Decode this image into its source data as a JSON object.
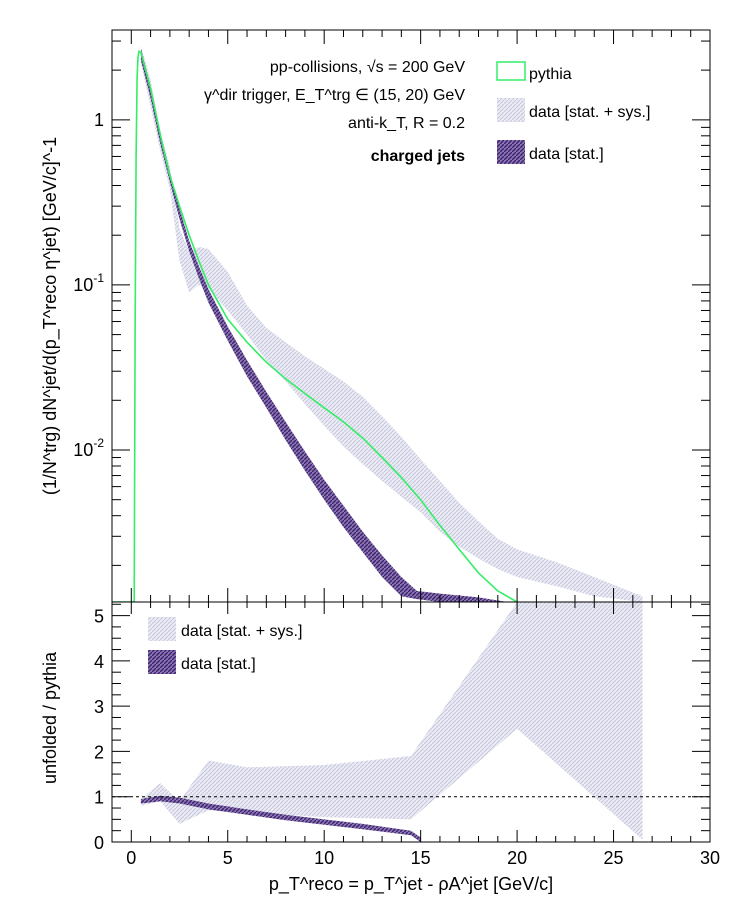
{
  "colors": {
    "pythia": "#33ee66",
    "stat_sys_band": "#dcdcec",
    "stat_band": "#6a4b9a",
    "axis": "#000000",
    "reference_line": "#000000"
  },
  "chart_data": [
    {
      "type": "line",
      "panel": "top",
      "x_scale": "linear",
      "y_scale": "log",
      "xlim": [
        -1,
        30
      ],
      "ylim": [
        0.0012,
        3.5
      ],
      "x_ticks": [
        0,
        5,
        10,
        15,
        20,
        25,
        30
      ],
      "y_ticks": [
        {
          "value": 1,
          "label": "1"
        },
        {
          "value": 0.1,
          "label": "10^-1"
        },
        {
          "value": 0.01,
          "label": "10^-2"
        }
      ],
      "ylabel": "(1/N^trg) dN^jet/d(p_T^reco η^jet) [GeV/c]^-1",
      "annotations": [
        "pp-collisions, √s = 200 GeV",
        "γ^dir trigger, E_T^trg ∈ (15, 20) GeV",
        "anti-k_T, R = 0.2",
        "charged jets"
      ],
      "legend": {
        "placement": "top-right",
        "entries": [
          "pythia",
          "data [stat. + sys.]",
          "data [stat.]"
        ]
      },
      "series": [
        {
          "name": "pythia",
          "style": "line",
          "x": [
            -1,
            0.15,
            0.2,
            0.25,
            0.3,
            0.35,
            0.4,
            0.5,
            0.6,
            0.8,
            1.0,
            1.3,
            1.6,
            2.0,
            2.5,
            3.0,
            3.5,
            4.0,
            5.0,
            6.0,
            7.0,
            8.0,
            9.0,
            10.0,
            11.0,
            12.0,
            13.0,
            14.0,
            15.0,
            16.0,
            17.0,
            18.0,
            19.0,
            20.0
          ],
          "y": [
            0.0012,
            0.0012,
            0.05,
            0.6,
            1.8,
            2.4,
            2.6,
            2.55,
            2.3,
            1.9,
            1.55,
            1.05,
            0.72,
            0.46,
            0.3,
            0.2,
            0.14,
            0.1,
            0.062,
            0.045,
            0.034,
            0.027,
            0.022,
            0.018,
            0.0148,
            0.0118,
            0.009,
            0.0068,
            0.005,
            0.0035,
            0.0025,
            0.0018,
            0.0014,
            0.0012
          ]
        },
        {
          "name": "data [stat. + sys.]",
          "style": "band",
          "x": [
            0.5,
            1.0,
            1.5,
            2.0,
            2.5,
            3.0,
            3.5,
            4.0,
            5.0,
            6.0,
            7.0,
            8.0,
            9.0,
            10.0,
            11.0,
            12.0,
            13.0,
            14.0,
            15.0,
            16.0,
            17.0,
            18.0,
            19.0,
            20.0,
            22.0,
            24.0,
            26.5
          ],
          "low": [
            2.2,
            1.2,
            0.65,
            0.38,
            0.14,
            0.09,
            0.1,
            0.095,
            0.07,
            0.05,
            0.035,
            0.026,
            0.019,
            0.014,
            0.0105,
            0.0082,
            0.0065,
            0.0052,
            0.0042,
            0.0032,
            0.0026,
            0.0022,
            0.0019,
            0.0017,
            0.0015,
            0.0013,
            0.0012
          ],
          "high": [
            2.8,
            1.75,
            0.85,
            0.52,
            0.22,
            0.16,
            0.17,
            0.165,
            0.12,
            0.075,
            0.055,
            0.045,
            0.037,
            0.031,
            0.026,
            0.021,
            0.016,
            0.012,
            0.0088,
            0.0065,
            0.0048,
            0.0037,
            0.0029,
            0.0025,
            0.0021,
            0.0017,
            0.0013
          ]
        },
        {
          "name": "data [stat.]",
          "style": "band",
          "x": [
            0.5,
            1.0,
            1.5,
            2.0,
            2.5,
            3.0,
            3.5,
            4.0,
            5.0,
            6.0,
            7.0,
            8.0,
            9.0,
            10.0,
            11.0,
            12.0,
            13.0,
            14.0,
            14.8,
            16.0,
            18.0,
            19.5
          ],
          "low": [
            2.3,
            1.35,
            0.72,
            0.42,
            0.25,
            0.16,
            0.11,
            0.078,
            0.046,
            0.028,
            0.018,
            0.0115,
            0.0075,
            0.005,
            0.0034,
            0.0024,
            0.0017,
            0.0013,
            0.00125,
            0.0012,
            0.0012,
            0.0012
          ],
          "high": [
            2.7,
            1.6,
            0.85,
            0.48,
            0.29,
            0.185,
            0.13,
            0.094,
            0.056,
            0.035,
            0.0225,
            0.0148,
            0.0098,
            0.0066,
            0.0046,
            0.0032,
            0.0023,
            0.0017,
            0.0014,
            0.00135,
            0.00128,
            0.0012
          ]
        }
      ]
    },
    {
      "type": "area",
      "panel": "bottom",
      "x_scale": "linear",
      "y_scale": "linear",
      "xlim": [
        -1,
        30
      ],
      "ylim": [
        0,
        5.3
      ],
      "x_ticks": [
        0,
        5,
        10,
        15,
        20,
        25,
        30
      ],
      "y_ticks": [
        0,
        1,
        2,
        3,
        4,
        5
      ],
      "xlabel": "p_T^reco = p_T^jet - ρA^jet [GeV/c]",
      "ylabel": "unfolded / pythia",
      "reference_line": 1,
      "legend": {
        "placement": "top-left",
        "entries": [
          "data [stat. + sys.]",
          "data [stat.]"
        ]
      },
      "series": [
        {
          "name": "data [stat. + sys.]",
          "style": "band",
          "x": [
            0.5,
            1.5,
            2.5,
            4.0,
            6.0,
            10.0,
            14.5,
            20.0,
            26.5
          ],
          "low": [
            0.8,
            0.9,
            0.4,
            0.7,
            0.65,
            0.55,
            0.5,
            2.5,
            0.05
          ],
          "high": [
            0.95,
            1.3,
            0.9,
            1.8,
            1.65,
            1.7,
            1.9,
            5.3,
            5.3
          ]
        },
        {
          "name": "data [stat.]",
          "style": "band",
          "x": [
            0.5,
            1.5,
            2.5,
            4.0,
            6.0,
            8.0,
            10.0,
            12.0,
            14.5,
            15.0
          ],
          "low": [
            0.85,
            0.9,
            0.85,
            0.72,
            0.6,
            0.48,
            0.38,
            0.28,
            0.15,
            0.0
          ],
          "high": [
            0.95,
            1.02,
            0.98,
            0.85,
            0.72,
            0.6,
            0.5,
            0.4,
            0.25,
            0.1
          ]
        }
      ]
    }
  ]
}
